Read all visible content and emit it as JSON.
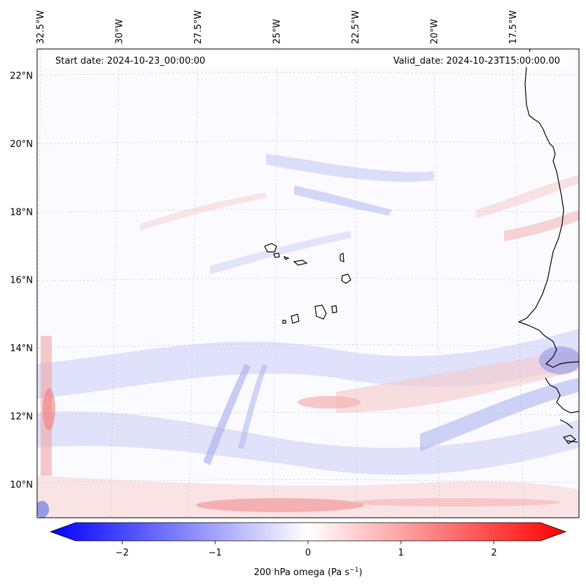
{
  "header": {
    "start_label": "Start date: 2024-10-23_00:00:00",
    "valid_label": "Valid_date: 2024-10-23T15:00:00.00"
  },
  "map": {
    "lon_labels": [
      {
        "lon": -32.5,
        "text": "32.5°W"
      },
      {
        "lon": -30.0,
        "text": "30°W"
      },
      {
        "lon": -27.5,
        "text": "27.5°W"
      },
      {
        "lon": -25.0,
        "text": "25°W"
      },
      {
        "lon": -22.5,
        "text": "22.5°W"
      },
      {
        "lon": -20.0,
        "text": "20°W"
      },
      {
        "lon": -17.5,
        "text": "17.5°W"
      }
    ],
    "lat_labels": [
      {
        "lat": 22,
        "text": "22°N"
      },
      {
        "lat": 20,
        "text": "20°N"
      },
      {
        "lat": 18,
        "text": "18°N"
      },
      {
        "lat": 16,
        "text": "16°N"
      },
      {
        "lat": 14,
        "text": "14°N"
      },
      {
        "lat": 12,
        "text": "12°N"
      },
      {
        "lat": 10,
        "text": "10°N"
      }
    ],
    "colors": {
      "negative": "#0000ff",
      "zero": "#ffffff",
      "positive": "#ff0000",
      "coast": "#000000",
      "grid": "#b0b0b0"
    }
  },
  "colorbar": {
    "ticks": [
      {
        "value": -2,
        "text": "−2"
      },
      {
        "value": -1,
        "text": "−1"
      },
      {
        "value": 0,
        "text": "0"
      },
      {
        "value": 1,
        "text": "1"
      },
      {
        "value": 2,
        "text": "2"
      }
    ],
    "vmin": -2.5,
    "vmax": 2.5,
    "label_main": "200 hPa omega (Pa s",
    "label_sup": "−1",
    "label_end": ")"
  }
}
